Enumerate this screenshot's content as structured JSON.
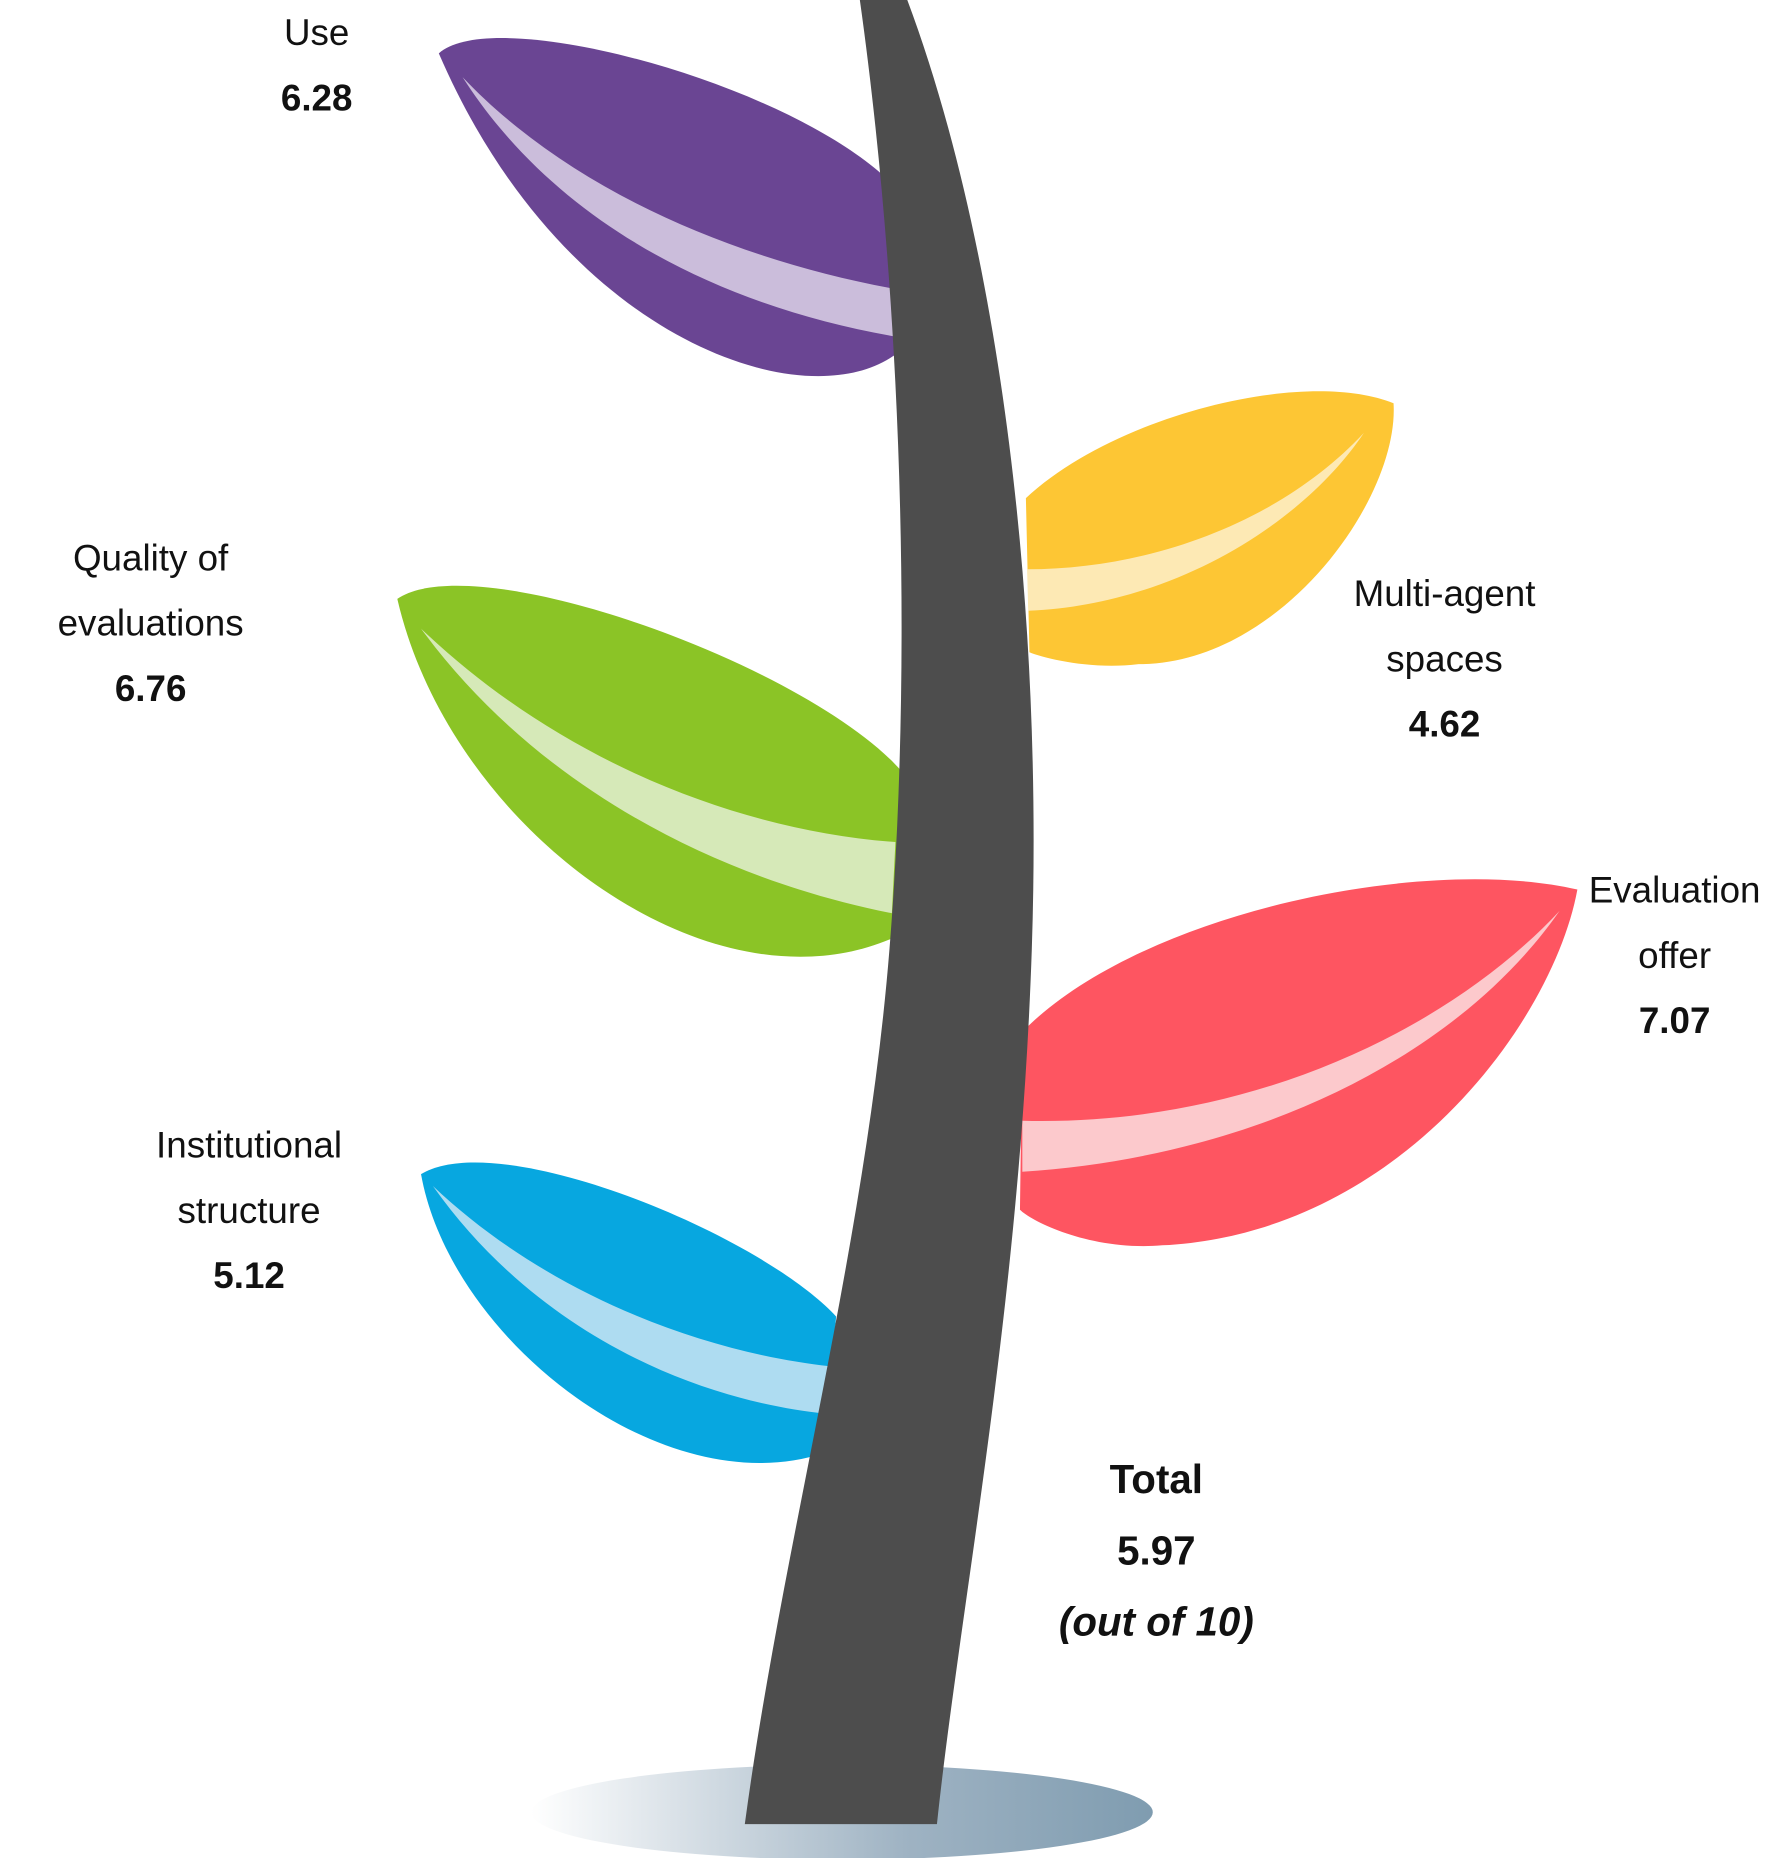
{
  "leaves": [
    {
      "label": "Use",
      "value": "6.28",
      "color": "#6a4593",
      "highlight": "#cbbddb"
    },
    {
      "label": "Multi-agent spaces",
      "value": "4.62",
      "color": "#fdc634",
      "highlight": "#fde9b4"
    },
    {
      "label": "Quality of evaluations",
      "value": "6.76",
      "color": "#8bc426",
      "highlight": "#d6e9b8"
    },
    {
      "label": "Evaluation offer",
      "value": "7.07",
      "color": "#fe5561",
      "highlight": "#fcc9cc"
    },
    {
      "label": "Institutional structure",
      "value": "5.12",
      "color": "#07a7e0",
      "highlight": "#aedcf1"
    }
  ],
  "total": {
    "label": "Total",
    "value": "5.97",
    "note": "(out of 10)"
  },
  "stem_color": "#4d4d4d"
}
